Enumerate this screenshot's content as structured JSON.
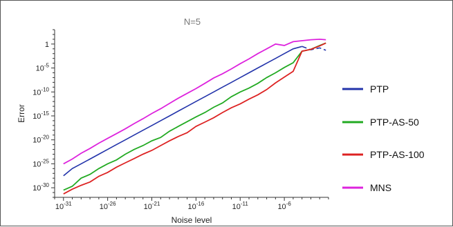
{
  "chart_data": {
    "type": "line",
    "title": "N=5",
    "xlabel": "Noise level",
    "ylabel": "Error",
    "x_scale": "log",
    "y_scale": "log",
    "xlim_exponent": [
      -32,
      -1
    ],
    "ylim_exponent": [
      -32,
      3
    ],
    "x_ticks": [
      {
        "base": "10",
        "exp": "-31",
        "value": -31
      },
      {
        "base": "10",
        "exp": "-26",
        "value": -26
      },
      {
        "base": "10",
        "exp": "-21",
        "value": -21
      },
      {
        "base": "10",
        "exp": "-16",
        "value": -16
      },
      {
        "base": "10",
        "exp": "-11",
        "value": -11
      },
      {
        "base": "10",
        "exp": "-6",
        "value": -6
      }
    ],
    "y_ticks": [
      {
        "base": "1",
        "exp": "",
        "value": 0
      },
      {
        "base": "10",
        "exp": "-5",
        "value": -5
      },
      {
        "base": "10",
        "exp": "-10",
        "value": -10
      },
      {
        "base": "10",
        "exp": "-15",
        "value": -15
      },
      {
        "base": "10",
        "exp": "-20",
        "value": -20
      },
      {
        "base": "10",
        "exp": "-25",
        "value": -25
      },
      {
        "base": "10",
        "exp": "-30",
        "value": -30
      }
    ],
    "legend_position": "right",
    "grid": false,
    "series": [
      {
        "name": "PTP",
        "color": "#2233aa",
        "x_log10": [
          -31,
          -30,
          -29,
          -28,
          -27,
          -26,
          -25,
          -24,
          -23,
          -22,
          -21,
          -20,
          -19,
          -18,
          -17,
          -16,
          -15,
          -14,
          -13,
          -12,
          -11,
          -10,
          -9,
          -8,
          -7,
          -6,
          -5,
          -4,
          -3,
          -2,
          -1.3
        ],
        "y_log10": [
          -27.5,
          -26,
          -25,
          -24,
          -23,
          -22,
          -21,
          -20,
          -19,
          -18,
          -17,
          -16,
          -15,
          -14,
          -13,
          -12,
          -11,
          -10,
          -9,
          -8,
          -7,
          -6,
          -5,
          -4,
          -3,
          -2,
          -1,
          -0.5,
          -1.2,
          -0.8,
          -1.3
        ]
      },
      {
        "name": "PTP-AS-50",
        "color": "#22aa22",
        "x_log10": [
          -31,
          -30,
          -29,
          -28,
          -27,
          -26,
          -25,
          -24,
          -23,
          -22,
          -21,
          -20,
          -19,
          -18,
          -17,
          -16,
          -15,
          -14,
          -13,
          -12,
          -11,
          -10,
          -9,
          -8,
          -7,
          -6,
          -5,
          -4,
          -3,
          -2,
          -1.3
        ],
        "y_log10": [
          -30.5,
          -29.7,
          -28,
          -27.2,
          -26,
          -25,
          -24.2,
          -23,
          -22,
          -21.2,
          -20.2,
          -19.5,
          -18.2,
          -17.2,
          -16.2,
          -15.2,
          -14.3,
          -13.2,
          -12.3,
          -11,
          -10,
          -9.2,
          -8.2,
          -7,
          -6,
          -4.9,
          -3.9,
          -1.5,
          -1.1,
          -0.3,
          0.2
        ]
      },
      {
        "name": "PTP-AS-100",
        "color": "#dd2222",
        "x_log10": [
          -31,
          -30,
          -29,
          -28,
          -27,
          -26,
          -25,
          -24,
          -23,
          -22,
          -21,
          -20,
          -19,
          -18,
          -17,
          -16,
          -15,
          -14,
          -13,
          -12,
          -11,
          -10,
          -9,
          -8,
          -7,
          -6,
          -5,
          -4,
          -3,
          -2,
          -1.3
        ],
        "y_log10": [
          -31.3,
          -30.3,
          -29.5,
          -28.8,
          -27.6,
          -26.8,
          -25.7,
          -24.8,
          -23.9,
          -23,
          -22.2,
          -21.2,
          -20.2,
          -19.3,
          -18.5,
          -17.2,
          -16.3,
          -15.4,
          -14.3,
          -13.3,
          -12.5,
          -11.5,
          -10.6,
          -9.5,
          -8.1,
          -6.9,
          -5.7,
          -1.5,
          -1.1,
          -0.4,
          0.2
        ]
      },
      {
        "name": "MNS",
        "color": "#dd22dd",
        "x_log10": [
          -31,
          -30,
          -29,
          -28,
          -27,
          -26,
          -25,
          -24,
          -23,
          -22,
          -21,
          -20,
          -19,
          -18,
          -17,
          -16,
          -15,
          -14,
          -13,
          -12,
          -11,
          -10,
          -9,
          -8,
          -7,
          -6,
          -5,
          -4,
          -3,
          -2,
          -1.3
        ],
        "y_log10": [
          -25,
          -24,
          -22.8,
          -21.8,
          -20.7,
          -19.7,
          -18.7,
          -17.7,
          -16.6,
          -15.6,
          -14.5,
          -13.5,
          -12.4,
          -11.3,
          -10.3,
          -9.3,
          -8.2,
          -7.1,
          -6.2,
          -5.2,
          -4.1,
          -3.1,
          -2,
          -1,
          0,
          -0.3,
          0.5,
          0.7,
          0.9,
          1,
          0.9
        ]
      }
    ]
  }
}
